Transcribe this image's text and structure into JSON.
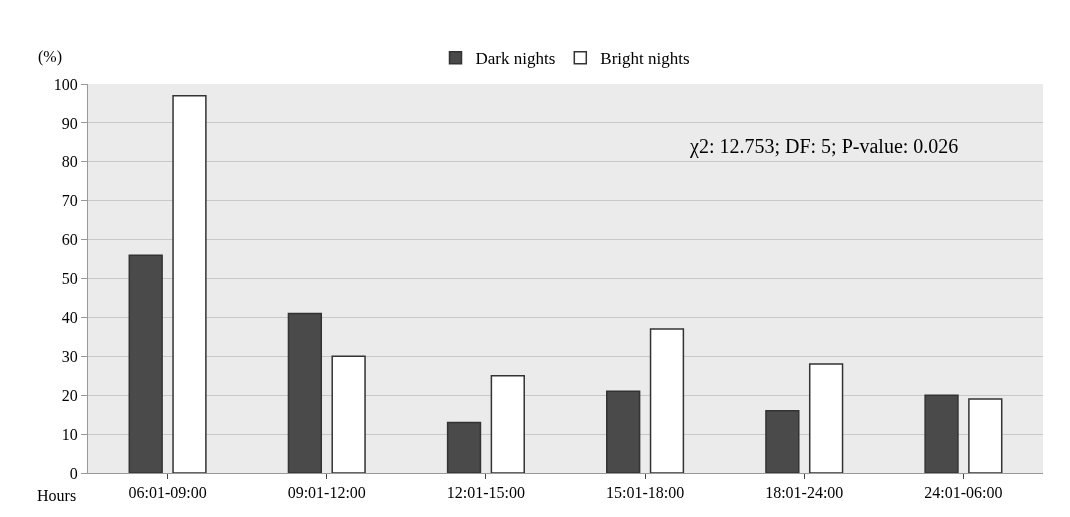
{
  "chart_data": {
    "type": "bar",
    "ylabel": "(%)",
    "xlabel": "Hours",
    "categories": [
      "06:01-09:00",
      "09:01-12:00",
      "12:01-15:00",
      "15:01-18:00",
      "18:01-24:00",
      "24:01-06:00"
    ],
    "series": [
      {
        "name": "Dark nights",
        "color": "#4a4a4a",
        "values": [
          56,
          41,
          13,
          21,
          16,
          20
        ]
      },
      {
        "name": "Bright nights",
        "color": "#ffffff",
        "values": [
          97,
          30,
          25,
          37,
          28,
          19
        ]
      }
    ],
    "ylim": [
      0,
      100
    ],
    "yticks": [
      0,
      10,
      20,
      30,
      40,
      50,
      60,
      70,
      80,
      90,
      100
    ],
    "grid": "y",
    "legend": "top",
    "annotations": [
      "χ2: 12.753; DF: 5; P-value: 0.026"
    ]
  }
}
